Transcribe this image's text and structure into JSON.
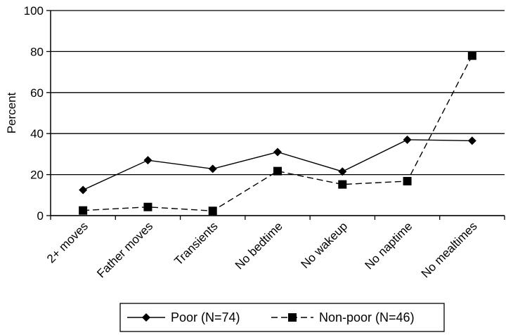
{
  "chart_data": {
    "type": "line",
    "categories": [
      "2+ moves",
      "Father moves",
      "Transients",
      "No bedtime",
      "No wakeup",
      "No naptime",
      "No mealtimes"
    ],
    "series": [
      {
        "name": "Poor (N=74)",
        "values": [
          12.5,
          27,
          22.8,
          31,
          21.5,
          37,
          36.5
        ],
        "marker": "diamond",
        "line": "solid",
        "color": "#000000"
      },
      {
        "name": "Non-poor (N=46)",
        "values": [
          2.5,
          4.2,
          2.3,
          21.7,
          15.2,
          16.8,
          78
        ],
        "marker": "square",
        "line": "dashed",
        "color": "#000000"
      }
    ],
    "ylabel": "Percent",
    "ylim": [
      0,
      100
    ],
    "yticks": [
      0,
      20,
      40,
      60,
      80,
      100
    ],
    "grid": true,
    "legend_position": "bottom"
  }
}
